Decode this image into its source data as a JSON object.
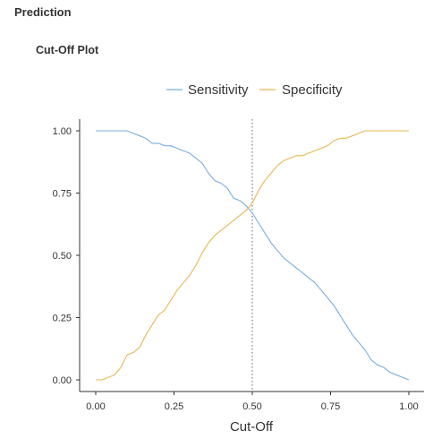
{
  "section_title": "Prediction",
  "subsection_title": "Cut-Off Plot",
  "chart_data": {
    "type": "line",
    "title": "",
    "xlabel": "Cut-Off",
    "ylabel": "",
    "xlim": [
      0,
      1
    ],
    "ylim": [
      0,
      1
    ],
    "x_ticks": [
      "0.00",
      "0.25",
      "0.50",
      "0.75",
      "1.00"
    ],
    "y_ticks": [
      "0.00",
      "0.25",
      "0.50",
      "0.75",
      "1.00"
    ],
    "legend_position": "top",
    "grid": false,
    "vline": 0.5,
    "series": [
      {
        "name": "Sensitivity",
        "color": "#7AADDE",
        "x": [
          0.0,
          0.02,
          0.04,
          0.06,
          0.08,
          0.1,
          0.12,
          0.14,
          0.16,
          0.18,
          0.2,
          0.22,
          0.24,
          0.26,
          0.28,
          0.3,
          0.32,
          0.34,
          0.36,
          0.38,
          0.4,
          0.42,
          0.44,
          0.46,
          0.48,
          0.5,
          0.52,
          0.54,
          0.56,
          0.58,
          0.6,
          0.62,
          0.64,
          0.66,
          0.68,
          0.7,
          0.72,
          0.74,
          0.76,
          0.78,
          0.8,
          0.82,
          0.84,
          0.86,
          0.88,
          0.9,
          0.92,
          0.94,
          0.96,
          0.98,
          1.0
        ],
        "values": [
          1.0,
          1.0,
          1.0,
          1.0,
          1.0,
          1.0,
          0.99,
          0.98,
          0.97,
          0.95,
          0.95,
          0.94,
          0.94,
          0.93,
          0.92,
          0.91,
          0.89,
          0.87,
          0.83,
          0.8,
          0.79,
          0.77,
          0.73,
          0.72,
          0.7,
          0.67,
          0.63,
          0.59,
          0.55,
          0.52,
          0.49,
          0.47,
          0.45,
          0.43,
          0.41,
          0.39,
          0.36,
          0.33,
          0.3,
          0.26,
          0.22,
          0.18,
          0.15,
          0.12,
          0.08,
          0.06,
          0.05,
          0.03,
          0.02,
          0.01,
          0.0
        ]
      },
      {
        "name": "Specificity",
        "color": "#E8B656",
        "x": [
          0.0,
          0.02,
          0.04,
          0.06,
          0.08,
          0.1,
          0.12,
          0.14,
          0.16,
          0.18,
          0.2,
          0.22,
          0.24,
          0.26,
          0.28,
          0.3,
          0.32,
          0.34,
          0.36,
          0.38,
          0.4,
          0.42,
          0.44,
          0.46,
          0.48,
          0.5,
          0.52,
          0.54,
          0.56,
          0.58,
          0.6,
          0.62,
          0.64,
          0.66,
          0.68,
          0.7,
          0.72,
          0.74,
          0.76,
          0.78,
          0.8,
          0.82,
          0.84,
          0.86,
          0.88,
          0.9,
          0.92,
          0.94,
          0.96,
          0.98,
          1.0
        ],
        "values": [
          0.0,
          0.0,
          0.01,
          0.02,
          0.05,
          0.1,
          0.11,
          0.13,
          0.18,
          0.22,
          0.26,
          0.28,
          0.32,
          0.36,
          0.39,
          0.42,
          0.46,
          0.51,
          0.55,
          0.58,
          0.6,
          0.62,
          0.64,
          0.66,
          0.68,
          0.71,
          0.76,
          0.8,
          0.83,
          0.86,
          0.88,
          0.89,
          0.9,
          0.9,
          0.91,
          0.92,
          0.93,
          0.94,
          0.96,
          0.97,
          0.97,
          0.98,
          0.99,
          1.0,
          1.0,
          1.0,
          1.0,
          1.0,
          1.0,
          1.0,
          1.0
        ]
      }
    ]
  }
}
